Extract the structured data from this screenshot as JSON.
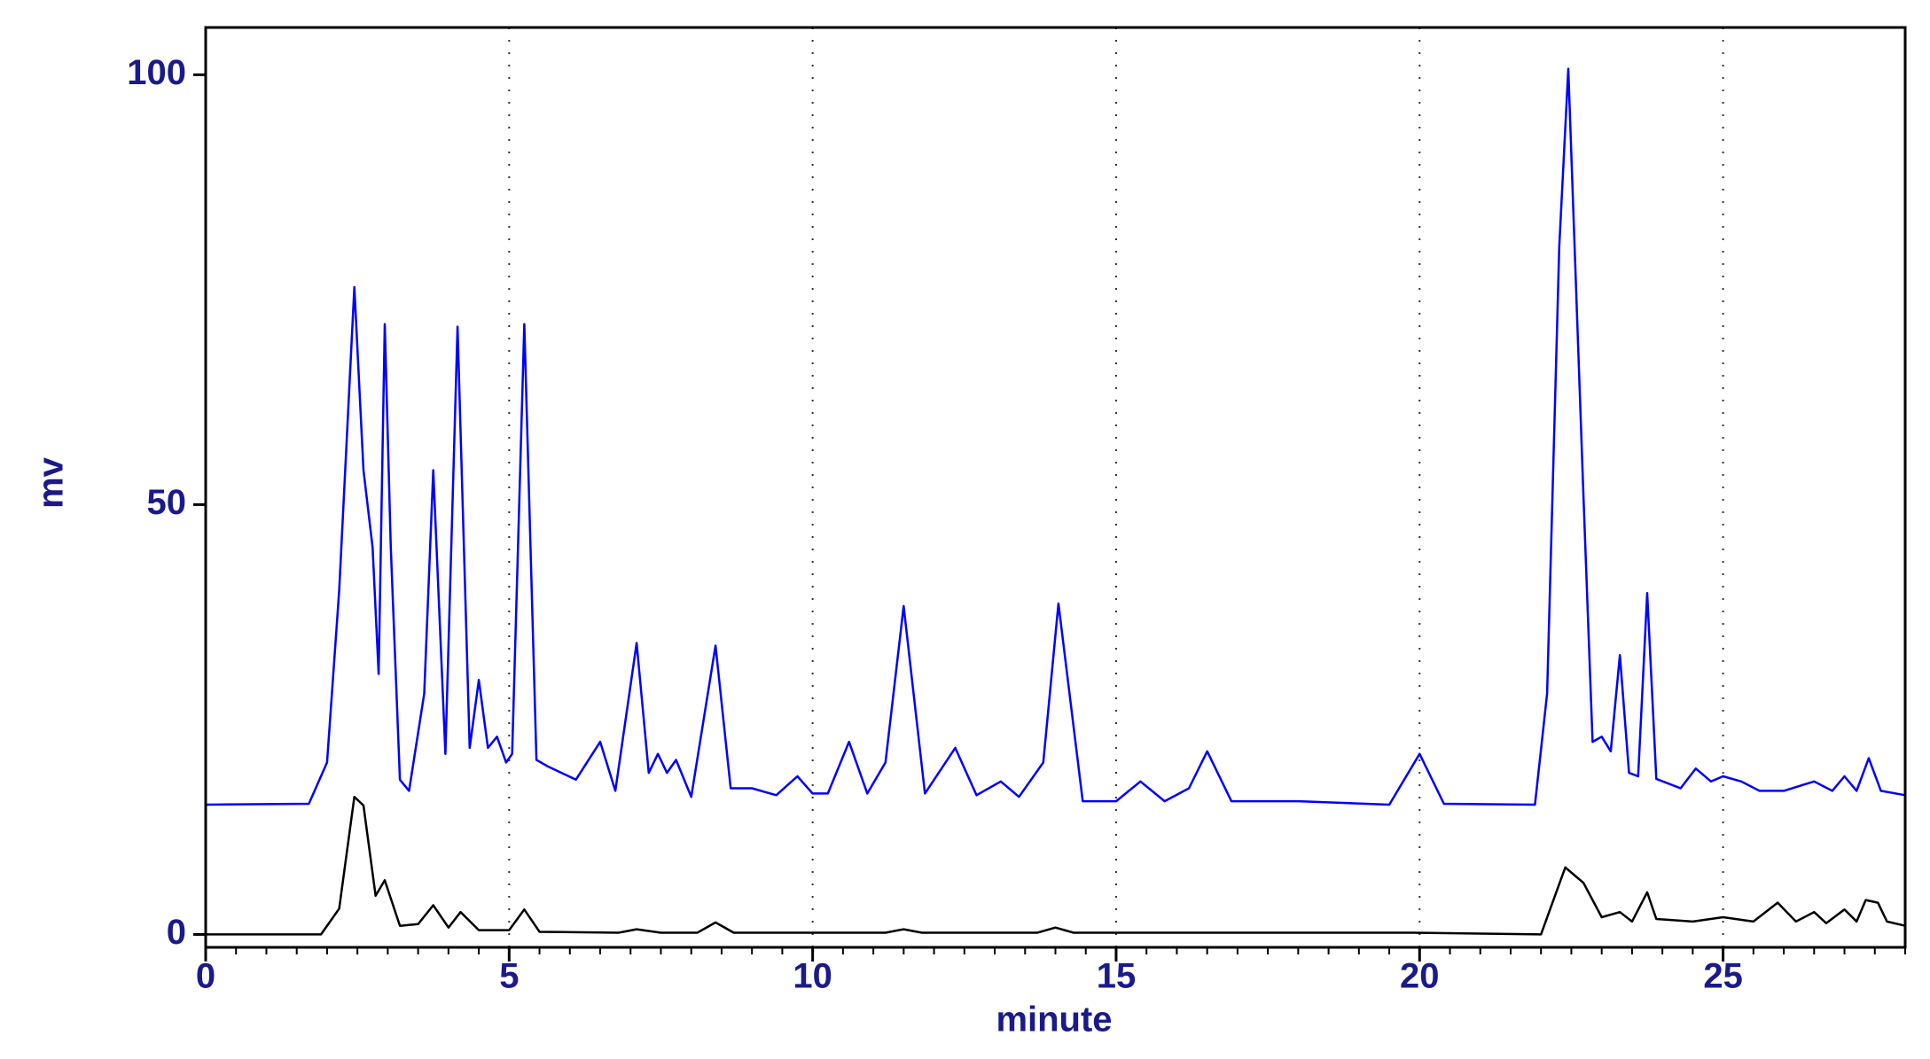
{
  "chart_data": {
    "type": "line",
    "xlabel": "minute",
    "ylabel": "mv",
    "xlim": [
      0,
      28
    ],
    "ylim": [
      -1.5,
      105.5
    ],
    "xticks": [
      0,
      5,
      10,
      15,
      20,
      25
    ],
    "yticks": [
      0,
      50,
      100
    ],
    "grid": true,
    "series": [
      {
        "color": "#0000ff",
        "x": [
          0,
          1.7,
          2.0,
          2.2,
          2.45,
          2.6,
          2.75,
          2.85,
          2.95,
          3.05,
          3.2,
          3.35,
          3.6,
          3.75,
          3.95,
          4.15,
          4.35,
          4.5,
          4.65,
          4.8,
          4.95,
          5.05,
          5.25,
          5.45,
          5.65,
          6.1,
          6.5,
          6.75,
          7.1,
          7.3,
          7.45,
          7.6,
          7.75,
          8.0,
          8.4,
          8.65,
          9.0,
          9.4,
          9.75,
          10.0,
          10.25,
          10.6,
          10.9,
          11.2,
          11.5,
          11.85,
          12.35,
          12.7,
          13.1,
          13.4,
          13.8,
          14.05,
          14.45,
          15.0,
          15.4,
          15.8,
          16.2,
          16.5,
          16.9,
          18.0,
          19.5,
          20.0,
          20.4,
          21.9,
          22.1,
          22.3,
          22.45,
          22.7,
          22.85,
          23.0,
          23.15,
          23.3,
          23.45,
          23.6,
          23.75,
          23.9,
          24.3,
          24.55,
          24.8,
          25.0,
          25.3,
          25.6,
          26.0,
          26.5,
          26.8,
          27.0,
          27.2,
          27.4,
          27.6,
          28.0
        ],
        "values": [
          15.1,
          15.2,
          20,
          40,
          75.3,
          54,
          45,
          30.3,
          71,
          45,
          18,
          16.7,
          28,
          54,
          21,
          70.7,
          21.7,
          29.6,
          21.7,
          23,
          20,
          21,
          71,
          20.3,
          19.5,
          18,
          22.4,
          16.7,
          33.9,
          18.8,
          21,
          18.8,
          20.3,
          16,
          33.6,
          17,
          17,
          16.2,
          18.4,
          16.4,
          16.4,
          22.4,
          16.4,
          20,
          38.2,
          16.4,
          21.7,
          16.2,
          17.8,
          16,
          20,
          38.5,
          15.5,
          15.5,
          17.8,
          15.5,
          17,
          21.3,
          15.5,
          15.5,
          15.1,
          21,
          15.2,
          15.1,
          28,
          80,
          100.7,
          51,
          22.4,
          23,
          21.3,
          32.5,
          18.8,
          18.4,
          39.7,
          18.1,
          17,
          19.3,
          17.8,
          18.4,
          17.8,
          16.7,
          16.7,
          17.8,
          16.7,
          18.4,
          16.7,
          20.5,
          16.7,
          16.2
        ]
      },
      {
        "color": "#000000",
        "x": [
          0,
          1.9,
          2.2,
          2.45,
          2.6,
          2.8,
          2.95,
          3.2,
          3.5,
          3.75,
          4.0,
          4.2,
          4.5,
          5.0,
          5.25,
          5.5,
          6.8,
          7.1,
          7.5,
          8.1,
          8.4,
          8.7,
          11.2,
          11.5,
          11.8,
          13.7,
          14.0,
          14.3,
          16.5,
          19.9,
          22.0,
          22.4,
          22.7,
          23.0,
          23.3,
          23.5,
          23.75,
          23.9,
          24.5,
          25.0,
          25.5,
          25.9,
          26.2,
          26.5,
          26.7,
          27.0,
          27.2,
          27.35,
          27.55,
          27.7,
          28.0
        ],
        "values": [
          0,
          0,
          3,
          16,
          15,
          4.5,
          6.3,
          1,
          1.2,
          3.4,
          0.8,
          2.6,
          0.5,
          0.5,
          2.9,
          0.3,
          0.2,
          0.6,
          0.2,
          0.2,
          1.4,
          0.2,
          0.2,
          0.6,
          0.2,
          0.2,
          0.8,
          0.2,
          0.2,
          0.2,
          0,
          7.8,
          6,
          2,
          2.6,
          1.5,
          4.9,
          1.8,
          1.5,
          2,
          1.5,
          3.7,
          1.5,
          2.6,
          1.3,
          2.9,
          1.5,
          4,
          3.7,
          1.5,
          1
        ]
      }
    ]
  }
}
